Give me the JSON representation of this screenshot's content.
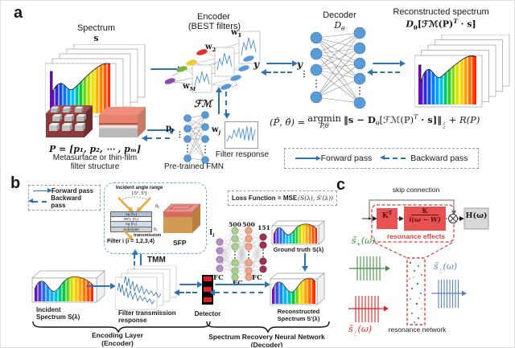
{
  "colors": {
    "arrow_blue": "#2e74b5",
    "node_blue": "#5b9bd5",
    "accent_red": "#e03c3c",
    "green_wave": "#3f8f3f",
    "red_wave": "#e02020",
    "blue_wave": "#5b82c2"
  },
  "panel_a": {
    "label": "a",
    "spectrum_title": "Spectrum",
    "spectrum_symbol": "s",
    "encoder_title": "Encoder",
    "encoder_subtitle": "(BEST filters)",
    "w_base": "w",
    "sub_1": "1",
    "sub_2": "2",
    "sub_M": "M",
    "sub_j": "j",
    "dots_diag": "...",
    "vdots": "⋮",
    "y_label": "y",
    "decoder_title": "Decoder",
    "D_base": "D",
    "theta_sub": "θ",
    "recon_title": "Reconstructed spectrum",
    "recon_f2": "[ℱℳ(P)",
    "sup_T": "T",
    "recon_f3": " · s]",
    "P_formula": "P = [p₁, p₂, ⋯ , pₘ]",
    "meta_caption1": "Metasurface or thin-film",
    "meta_caption2": "filter structure",
    "FM": "ℱℳ",
    "p_base": "p",
    "filter_response": "Filter response",
    "pretrained": "Pre-trained FMN",
    "eq_lhs": "(P̂, θ̂) =",
    "eq_argmin": "argmin",
    "eq_argmin_sub": "P,θ",
    "eq_b1": "‖s − D",
    "eq_b2": "[ℱℳ(P)",
    "eq_b3": " · s]‖",
    "eq_sup2": "2",
    "eq_sub2": "2",
    "eq_b4": " + R(P)",
    "legend_forward": "Forward pass",
    "legend_backward": "Backward pass"
  },
  "panel_b": {
    "label": "b",
    "legend_forward": "Forward pass",
    "legend_backward": "Backward pass",
    "angle_line1": "Incident angle range",
    "angle_line2": "[-5°, 5°]",
    "theta1": "θ₁",
    "theta2": "θ₂",
    "layers": [
      "Ag (h₁)",
      "WO₃ (h₂)",
      "Ag (h₃)",
      "Substrate"
    ],
    "transmission": "transmission",
    "filter_label": "Filter i (i = 1,2,3,4)",
    "sfp": "SFP",
    "tmm": "TMM",
    "loss_bold": "Loss Function = MSE",
    "loss_args": "(S(λ), S′(λ))",
    "input_base": "I",
    "input_sub": "i",
    "h1": "500",
    "h2": "500",
    "out": "151",
    "fc": "FC",
    "ground_truth": "Ground truth S(λ)",
    "incident1": "Incident",
    "incident2": "Spectrum S(λ)",
    "ftr1": "Filter transmission",
    "ftr2": "response",
    "detector": "Detector",
    "recon1": "Reconstructed",
    "recon2": "Spectrum S′(λ)",
    "enc_brace1": "Encoding Layer",
    "enc_brace2": "(Encoder)",
    "dec_brace1": "Spectrum Recovery Neural Network",
    "dec_brace2": "(Decoder)"
  },
  "panel_c": {
    "label": "c",
    "skip": "skip connection",
    "K": "K",
    "K_sup": "T",
    "frac_num": "K",
    "frac_den": "i(ω − W)",
    "resonance_effects": "resonance effects",
    "H": "H(ω)",
    "s_base": "s̃",
    "plus": "+",
    "minus": "−",
    "r": "r",
    "t": "t",
    "omega": "(ω)",
    "resonance_network": "resonance network"
  }
}
